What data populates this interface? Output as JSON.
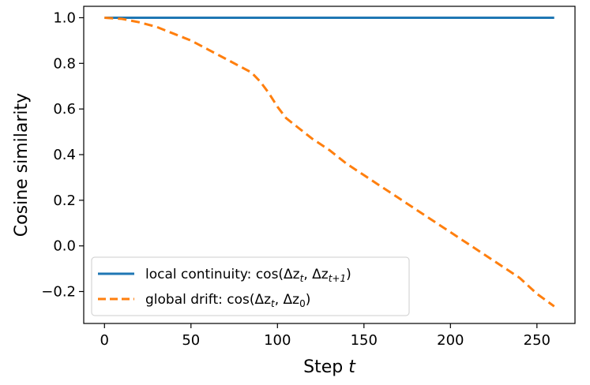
{
  "chart_data": {
    "type": "line",
    "title": "",
    "xlabel_text": "Step ",
    "xlabel_var": "t",
    "ylabel": "Cosine similarity",
    "xlim": [
      -12,
      272
    ],
    "ylim": [
      -0.34,
      1.05
    ],
    "x_ticks": [
      0,
      50,
      100,
      150,
      200,
      250
    ],
    "x_tick_labels": [
      "0",
      "50",
      "100",
      "150",
      "200",
      "250"
    ],
    "y_ticks": [
      1.0,
      0.8,
      0.6,
      0.4,
      0.2,
      0.0,
      -0.2
    ],
    "y_tick_labels": [
      "1.0",
      "0.8",
      "0.6",
      "0.4",
      "0.2",
      "0.0",
      "−0.2"
    ],
    "grid": false,
    "legend_position": "lower-left",
    "series": [
      {
        "name": "local continuity: cos(Δz_t, Δz_{t+1})",
        "legend_text": "local continuity: cos(Δz",
        "legend_sub1": "t",
        "legend_mid": ", Δz",
        "legend_sub2": "t+1",
        "legend_end": ")",
        "color": "#1f77b4",
        "style": "solid",
        "x": [
          0,
          260
        ],
        "y": [
          1.0,
          1.0
        ]
      },
      {
        "name": "global drift: cos(Δz_t, Δz_0)",
        "legend_text": "global drift: cos(Δz",
        "legend_sub1": "t",
        "legend_mid": ", Δz",
        "legend_sub2": "0",
        "legend_end": ")",
        "color": "#ff7f0e",
        "style": "dashed",
        "x": [
          0,
          10,
          20,
          30,
          40,
          50,
          60,
          70,
          80,
          85,
          90,
          95,
          100,
          105,
          110,
          120,
          130,
          140,
          150,
          160,
          170,
          180,
          190,
          200,
          210,
          220,
          230,
          240,
          250,
          260
        ],
        "y": [
          1.0,
          0.995,
          0.98,
          0.96,
          0.93,
          0.9,
          0.86,
          0.82,
          0.78,
          0.76,
          0.72,
          0.67,
          0.61,
          0.56,
          0.53,
          0.47,
          0.42,
          0.36,
          0.31,
          0.26,
          0.21,
          0.16,
          0.11,
          0.06,
          0.01,
          -0.04,
          -0.09,
          -0.14,
          -0.21,
          -0.265
        ]
      }
    ]
  }
}
